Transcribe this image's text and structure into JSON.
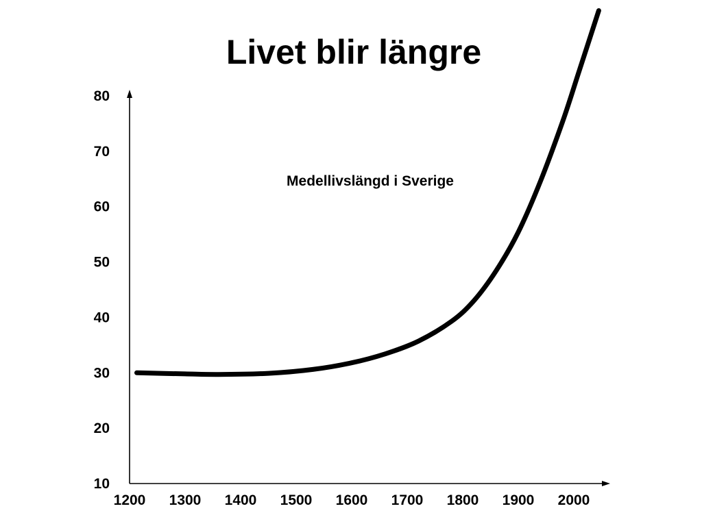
{
  "chart_data": {
    "type": "line",
    "title": "Livet blir längre",
    "annotation": "Medellivslängd i Sverige",
    "xlabel": "",
    "ylabel": "",
    "x_ticks": [
      "1200",
      "1300",
      "1400",
      "1500",
      "1600",
      "1700",
      "1800",
      "1900",
      "2000"
    ],
    "y_ticks": [
      "10",
      "20",
      "30",
      "40",
      "50",
      "60",
      "70",
      "80"
    ],
    "xlim": [
      1200,
      2075
    ],
    "ylim": [
      10,
      80
    ],
    "grid": false,
    "legend": "none",
    "line_color": "#000000",
    "series": [
      {
        "x": [
          1213,
          1300,
          1360,
          1450,
          1530,
          1600,
          1660,
          1720,
          1780,
          1820,
          1860,
          1900,
          1940,
          1980,
          2010,
          2045
        ],
        "y": [
          30.0,
          29.8,
          29.7,
          29.9,
          30.6,
          31.8,
          33.4,
          35.7,
          39.3,
          43.0,
          48.4,
          55.4,
          64.6,
          75.4,
          84.6,
          95.4
        ]
      }
    ]
  }
}
